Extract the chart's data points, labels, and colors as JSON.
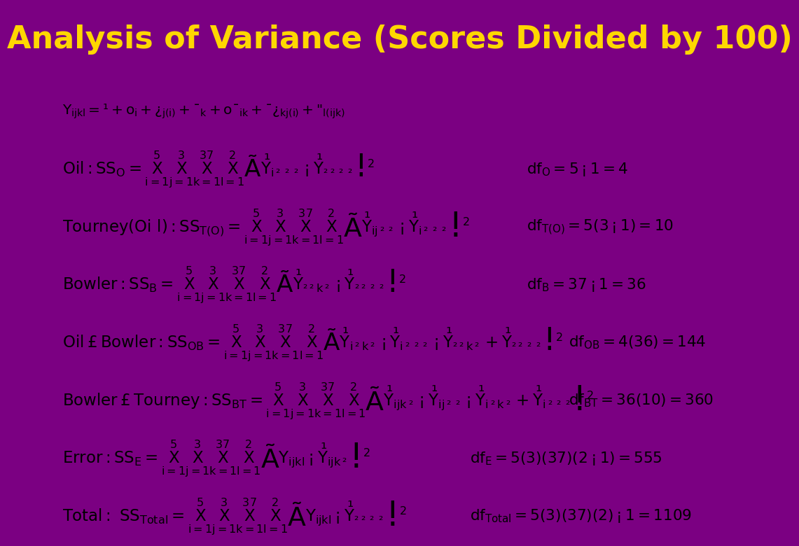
{
  "title": "Analysis of Variance (Scores Divided by 100)",
  "title_color": "#FFD700",
  "title_bg_color": "#7B0082",
  "content_bg_color": "#FFFFFF",
  "border_color": "#7B0082",
  "text_color": "#000000",
  "title_fontsize": 32,
  "formula_fontsize": 14.5
}
